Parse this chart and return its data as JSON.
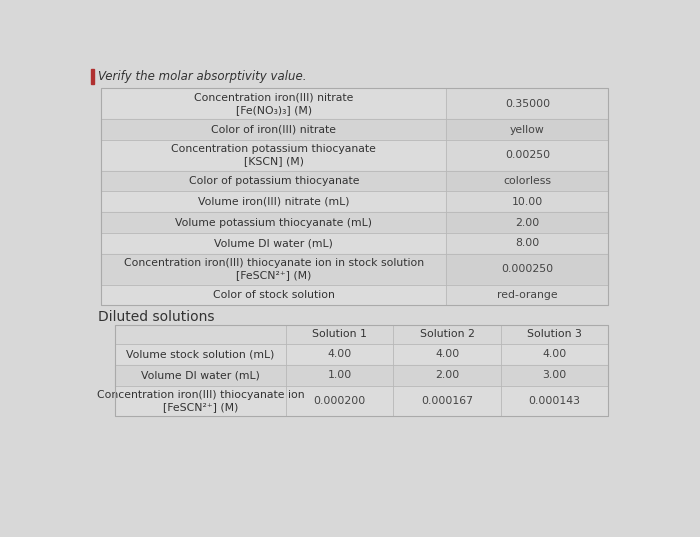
{
  "title": "Verify the molar absorptivity value.",
  "bg_color": "#d8d8d8",
  "table_bg_even": "#dcdcdc",
  "table_bg_odd": "#e8e8e8",
  "cell_value_bg": "#e0e0e0",
  "top_table": {
    "rows": [
      {
        "label": "Concentration iron(III) nitrate\n[Fe(NO₃)₃] (M)",
        "value": "0.35000"
      },
      {
        "label": "Color of iron(III) nitrate",
        "value": "yellow"
      },
      {
        "label": "Concentration potassium thiocyanate\n[KSCN] (M)",
        "value": "0.00250"
      },
      {
        "label": "Color of potassium thiocyanate",
        "value": "colorless"
      },
      {
        "label": "Volume iron(III) nitrate (mL)",
        "value": "10.00"
      },
      {
        "label": "Volume potassium thiocyanate (mL)",
        "value": "2.00"
      },
      {
        "label": "Volume DI water (mL)",
        "value": "8.00"
      },
      {
        "label": "Concentration iron(III) thiocyanate ion in stock solution\n[FeSCN²⁺] (M)",
        "value": "0.000250"
      },
      {
        "label": "Color of stock solution",
        "value": "red-orange"
      }
    ]
  },
  "diluted_title": "Diluted solutions",
  "bottom_table": {
    "headers": [
      "",
      "Solution 1",
      "Solution 2",
      "Solution 3"
    ],
    "rows": [
      {
        "label": "Volume stock solution (mL)",
        "values": [
          "4.00",
          "4.00",
          "4.00"
        ]
      },
      {
        "label": "Volume DI water (mL)",
        "values": [
          "1.00",
          "2.00",
          "3.00"
        ]
      },
      {
        "label": "Concentration iron(III) thiocyanate ion\n[FeSCN²⁺] (M)",
        "values": [
          "0.000200",
          "0.000167",
          "0.000143"
        ]
      }
    ]
  }
}
